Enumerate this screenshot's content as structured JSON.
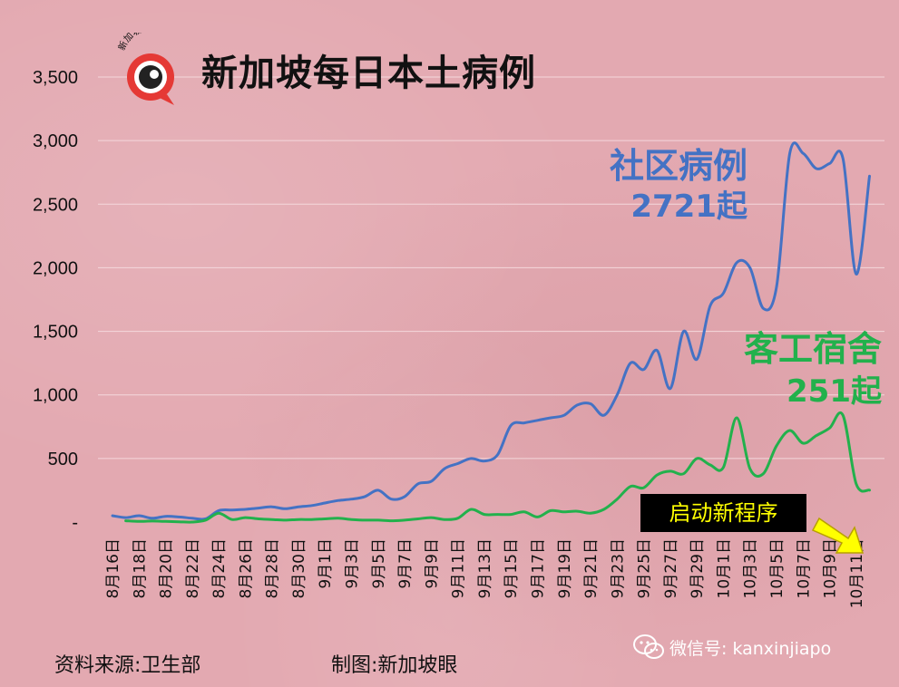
{
  "title": "新加坡每日本土病例",
  "logo": {
    "text": "新加坡眼"
  },
  "annotations": {
    "community_label": "社区病例",
    "community_value": "2721起",
    "dormitory_label": "客工宿舍",
    "dormitory_value": "251起"
  },
  "badge": "启动新程序",
  "footer": {
    "source": "资料来源:卫生部",
    "made_by": "制图:新加坡眼",
    "wechat": "微信号: kanxinjiapo"
  },
  "colors": {
    "community": "#4472c4",
    "dormitory": "#22b14c",
    "badge_text": "#ffff00",
    "arrow": "#ffff00"
  },
  "chart_data": {
    "type": "line",
    "title": "新加坡每日本土病例",
    "xlabel": "",
    "ylabel": "",
    "ylim": [
      0,
      3500
    ],
    "yticks": [
      0,
      500,
      1000,
      1500,
      2000,
      2500,
      3000,
      3500
    ],
    "ytick_labels": [
      "-",
      "500",
      "1,000",
      "1,500",
      "2,000",
      "2,500",
      "3,000",
      "3,500"
    ],
    "grid": true,
    "x_tick_labels": [
      "8月16日",
      "8月18日",
      "8月20日",
      "8月22日",
      "8月24日",
      "8月26日",
      "8月28日",
      "8月30日",
      "9月1日",
      "9月3日",
      "9月5日",
      "9月7日",
      "9月9日",
      "9月11日",
      "9月13日",
      "9月15日",
      "9月17日",
      "9月19日",
      "9月21日",
      "9月23日",
      "9月25日",
      "9月27日",
      "9月29日",
      "10月1日",
      "10月3日",
      "10月5日",
      "10月7日",
      "10月9日",
      "10月11日"
    ],
    "dates": [
      "8月16日",
      "8月17日",
      "8月18日",
      "8月19日",
      "8月20日",
      "8月21日",
      "8月22日",
      "8月23日",
      "8月24日",
      "8月25日",
      "8月26日",
      "8月27日",
      "8月28日",
      "8月29日",
      "8月30日",
      "8月31日",
      "9月1日",
      "9月2日",
      "9月3日",
      "9月4日",
      "9月5日",
      "9月6日",
      "9月7日",
      "9月8日",
      "9月9日",
      "9月10日",
      "9月11日",
      "9月12日",
      "9月13日",
      "9月14日",
      "9月15日",
      "9月16日",
      "9月17日",
      "9月18日",
      "9月19日",
      "9月20日",
      "9月21日",
      "9月22日",
      "9月23日",
      "9月24日",
      "9月25日",
      "9月26日",
      "9月27日",
      "9月28日",
      "9月29日",
      "9月30日",
      "10月1日",
      "10月2日",
      "10月3日",
      "10月4日",
      "10月5日",
      "10月6日",
      "10月7日",
      "10月8日",
      "10月9日",
      "10月10日",
      "10月11日",
      "10月12日"
    ],
    "series": [
      {
        "name": "社区病例",
        "color": "#4472c4",
        "values": [
          50,
          35,
          50,
          30,
          45,
          40,
          30,
          25,
          90,
          95,
          100,
          110,
          120,
          105,
          120,
          130,
          150,
          170,
          180,
          200,
          250,
          180,
          200,
          300,
          320,
          420,
          460,
          500,
          480,
          530,
          760,
          780,
          800,
          820,
          840,
          920,
          930,
          840,
          1000,
          1250,
          1200,
          1350,
          1050,
          1500,
          1280,
          1700,
          1800,
          2040,
          2000,
          1680,
          1850,
          2900,
          2900,
          2780,
          2820,
          2860,
          1950,
          2721
        ]
      },
      {
        "name": "客工宿舍",
        "color": "#22b14c",
        "values": [
          null,
          10,
          5,
          8,
          5,
          2,
          0,
          15,
          70,
          20,
          35,
          25,
          20,
          15,
          20,
          20,
          25,
          30,
          20,
          15,
          15,
          10,
          15,
          25,
          35,
          20,
          30,
          100,
          60,
          60,
          60,
          80,
          40,
          90,
          80,
          85,
          70,
          100,
          180,
          280,
          270,
          370,
          400,
          380,
          500,
          450,
          430,
          820,
          420,
          380,
          600,
          720,
          620,
          680,
          740,
          840,
          300,
          251
        ]
      }
    ]
  }
}
